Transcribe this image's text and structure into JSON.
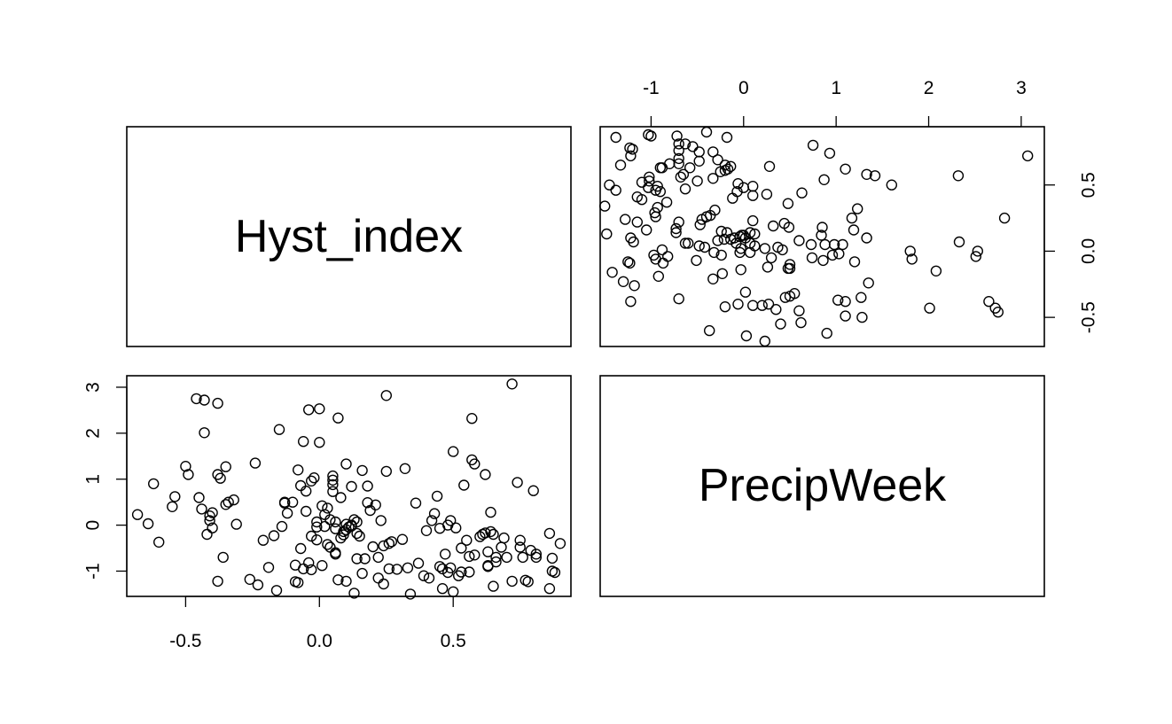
{
  "chart_data": {
    "type": "scatter",
    "variables": [
      "Hyst_index",
      "PrecipWeek"
    ],
    "axes": {
      "Hyst_index": {
        "range": [
          -0.72,
          0.94
        ],
        "ticks": [
          -0.5,
          0.0,
          0.5
        ],
        "tick_labels": [
          "-0.5",
          "0.0",
          "0.5"
        ]
      },
      "PrecipWeek": {
        "range": [
          -1.55,
          3.25
        ],
        "ticks": [
          -1,
          0,
          1,
          2,
          3
        ],
        "tick_labels": [
          "-1",
          "0",
          "1",
          "2",
          "3"
        ]
      }
    },
    "grid": false,
    "legend": "none",
    "points": [
      [
        -0.68,
        0.23
      ],
      [
        -0.64,
        0.03
      ],
      [
        -0.62,
        0.9
      ],
      [
        -0.6,
        -0.37
      ],
      [
        -0.55,
        0.4
      ],
      [
        -0.54,
        0.62
      ],
      [
        -0.5,
        1.28
      ],
      [
        -0.49,
        1.1
      ],
      [
        -0.46,
        2.75
      ],
      [
        -0.45,
        0.6
      ],
      [
        -0.44,
        0.35
      ],
      [
        -0.43,
        2.72
      ],
      [
        -0.43,
        2.01
      ],
      [
        -0.42,
        -0.2
      ],
      [
        -0.41,
        0.1
      ],
      [
        -0.41,
        0.2
      ],
      [
        -0.4,
        -0.06
      ],
      [
        -0.4,
        0.27
      ],
      [
        -0.38,
        -1.22
      ],
      [
        -0.38,
        1.1
      ],
      [
        -0.38,
        2.65
      ],
      [
        -0.37,
        1.02
      ],
      [
        -0.36,
        -0.7
      ],
      [
        -0.35,
        0.45
      ],
      [
        -0.35,
        1.27
      ],
      [
        -0.34,
        0.5
      ],
      [
        -0.32,
        0.55
      ],
      [
        -0.31,
        0.02
      ],
      [
        -0.26,
        -1.18
      ],
      [
        -0.24,
        1.35
      ],
      [
        -0.23,
        -1.3
      ],
      [
        -0.21,
        -0.33
      ],
      [
        -0.19,
        -0.92
      ],
      [
        -0.17,
        -0.23
      ],
      [
        -0.16,
        -1.42
      ],
      [
        -0.15,
        2.08
      ],
      [
        -0.14,
        -0.03
      ],
      [
        -0.13,
        0.5
      ],
      [
        -0.13,
        0.48
      ],
      [
        -0.12,
        0.26
      ],
      [
        -0.1,
        0.5
      ],
      [
        -0.09,
        -0.87
      ],
      [
        -0.09,
        -1.23
      ],
      [
        -0.08,
        1.2
      ],
      [
        -0.08,
        -1.25
      ],
      [
        -0.07,
        0.86
      ],
      [
        -0.07,
        -0.51
      ],
      [
        -0.06,
        1.82
      ],
      [
        -0.06,
        -0.95
      ],
      [
        -0.05,
        0.3
      ],
      [
        -0.05,
        0.74
      ],
      [
        -0.04,
        2.51
      ],
      [
        -0.04,
        -0.82
      ],
      [
        -0.03,
        -0.24
      ],
      [
        -0.03,
        0.96
      ],
      [
        -0.03,
        -0.97
      ],
      [
        -0.02,
        1.03
      ],
      [
        -0.01,
        -0.04
      ],
      [
        -0.01,
        0.07
      ],
      [
        -0.01,
        -0.32
      ],
      [
        0.0,
        1.8
      ],
      [
        0.0,
        2.53
      ],
      [
        0.01,
        0.42
      ],
      [
        0.01,
        -0.88
      ],
      [
        0.02,
        0.23
      ],
      [
        0.02,
        -0.03
      ],
      [
        0.03,
        -0.42
      ],
      [
        0.03,
        0.37
      ],
      [
        0.04,
        0.12
      ],
      [
        0.04,
        -0.48
      ],
      [
        0.05,
        0.73
      ],
      [
        0.05,
        0.98
      ],
      [
        0.05,
        0.88
      ],
      [
        0.05,
        1.07
      ],
      [
        0.06,
        0.07
      ],
      [
        0.06,
        -0.63
      ],
      [
        0.06,
        -0.08
      ],
      [
        0.06,
        -0.6
      ],
      [
        0.07,
        2.33
      ],
      [
        0.07,
        -1.19
      ],
      [
        0.08,
        0.6
      ],
      [
        0.08,
        -0.28
      ],
      [
        0.09,
        -0.21
      ],
      [
        0.09,
        -0.14
      ],
      [
        0.1,
        1.33
      ],
      [
        0.1,
        -0.1
      ],
      [
        0.1,
        -1.22
      ],
      [
        0.1,
        0.02
      ],
      [
        0.11,
        -0.04
      ],
      [
        0.12,
        0.84
      ],
      [
        0.12,
        -0.02
      ],
      [
        0.12,
        0.0
      ],
      [
        0.13,
        -1.48
      ],
      [
        0.13,
        0.12
      ],
      [
        0.14,
        0.07
      ],
      [
        0.14,
        -0.73
      ],
      [
        0.14,
        -0.18
      ],
      [
        0.15,
        -0.24
      ],
      [
        0.16,
        -1.05
      ],
      [
        0.16,
        1.19
      ],
      [
        0.17,
        -0.73
      ],
      [
        0.18,
        0.85
      ],
      [
        0.18,
        0.49
      ],
      [
        0.19,
        0.32
      ],
      [
        0.2,
        -0.47
      ],
      [
        0.21,
        0.44
      ],
      [
        0.22,
        -1.15
      ],
      [
        0.22,
        -0.7
      ],
      [
        0.23,
        0.1
      ],
      [
        0.24,
        -0.45
      ],
      [
        0.24,
        -1.28
      ],
      [
        0.25,
        1.17
      ],
      [
        0.25,
        2.82
      ],
      [
        0.26,
        -0.95
      ],
      [
        0.26,
        -0.4
      ],
      [
        0.27,
        -0.36
      ],
      [
        0.29,
        -0.96
      ],
      [
        0.31,
        -0.31
      ],
      [
        0.32,
        1.23
      ],
      [
        0.33,
        -0.93
      ],
      [
        0.34,
        -1.5
      ],
      [
        0.36,
        0.48
      ],
      [
        0.37,
        -0.83
      ],
      [
        0.39,
        -1.1
      ],
      [
        0.4,
        -0.12
      ],
      [
        0.41,
        -1.15
      ],
      [
        0.42,
        0.1
      ],
      [
        0.43,
        0.25
      ],
      [
        0.44,
        0.63
      ],
      [
        0.45,
        -0.07
      ],
      [
        0.45,
        -0.9
      ],
      [
        0.46,
        -1.38
      ],
      [
        0.46,
        -0.95
      ],
      [
        0.47,
        -0.63
      ],
      [
        0.48,
        0.0
      ],
      [
        0.48,
        -1.03
      ],
      [
        0.49,
        -0.93
      ],
      [
        0.49,
        0.1
      ],
      [
        0.5,
        -1.45
      ],
      [
        0.5,
        1.6
      ],
      [
        0.51,
        -0.06
      ],
      [
        0.52,
        -1.1
      ],
      [
        0.53,
        -1.02
      ],
      [
        0.53,
        -0.5
      ],
      [
        0.54,
        0.87
      ],
      [
        0.55,
        -0.33
      ],
      [
        0.56,
        -0.68
      ],
      [
        0.56,
        -1.02
      ],
      [
        0.57,
        2.32
      ],
      [
        0.57,
        1.42
      ],
      [
        0.58,
        -0.65
      ],
      [
        0.58,
        1.33
      ],
      [
        0.6,
        -0.25
      ],
      [
        0.61,
        -0.2
      ],
      [
        0.62,
        -0.17
      ],
      [
        0.62,
        1.1
      ],
      [
        0.63,
        -0.88
      ],
      [
        0.63,
        -0.9
      ],
      [
        0.63,
        -0.58
      ],
      [
        0.64,
        -0.14
      ],
      [
        0.64,
        0.28
      ],
      [
        0.65,
        -0.2
      ],
      [
        0.65,
        -1.33
      ],
      [
        0.66,
        -0.8
      ],
      [
        0.66,
        -0.7
      ],
      [
        0.68,
        -0.48
      ],
      [
        0.69,
        -0.28
      ],
      [
        0.7,
        -0.7
      ],
      [
        0.72,
        3.07
      ],
      [
        0.72,
        -1.22
      ],
      [
        0.74,
        0.93
      ],
      [
        0.75,
        -0.48
      ],
      [
        0.75,
        -0.33
      ],
      [
        0.76,
        -0.7
      ],
      [
        0.77,
        -1.2
      ],
      [
        0.78,
        -1.23
      ],
      [
        0.79,
        -0.55
      ],
      [
        0.8,
        0.75
      ],
      [
        0.81,
        -0.7
      ],
      [
        0.81,
        -0.63
      ],
      [
        0.86,
        -0.18
      ],
      [
        0.86,
        -1.38
      ],
      [
        0.87,
        -0.72
      ],
      [
        0.87,
        -1.0
      ],
      [
        0.88,
        -1.03
      ],
      [
        0.9,
        -0.4
      ]
    ]
  }
}
